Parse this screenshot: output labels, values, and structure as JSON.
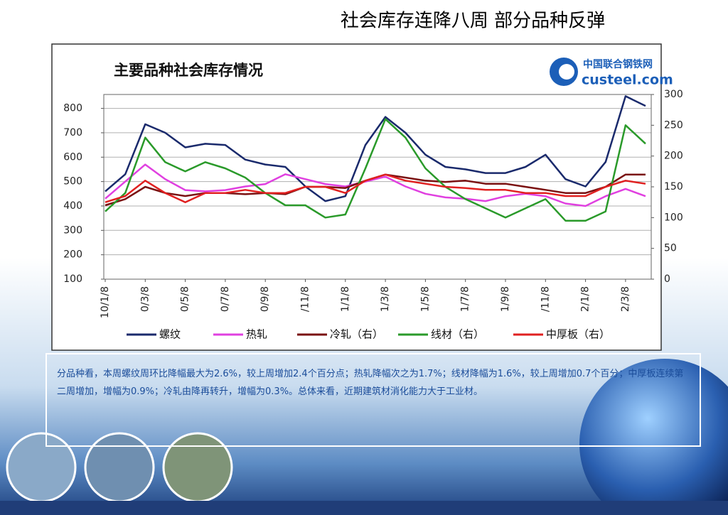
{
  "slide_title": "社会库存连降八周  部分品种反弹",
  "logo": {
    "name": "中国联合钢铁网",
    "url": "custeel.com"
  },
  "text": "分品种看，本周螺纹周环比降幅最大为2.6%，较上周增加2.4个百分点；热轧降幅次之为1.7%；线材降幅为1.6%，较上周增加0.7个百分；中厚板连续第二周增加，增幅为0.9%；冷轧由降再转升，增幅为0.3%。总体来看，近期建筑材消化能力大于工业材。",
  "chart_data": {
    "type": "line",
    "title": "主要品种社会库存情况",
    "categories": [
      "10/1/8",
      null,
      "0/3/8",
      null,
      "0/5/8",
      null,
      "0/7/8",
      null,
      "0/9/8",
      null,
      "/11/8",
      null,
      "1/1/8",
      null,
      "1/3/8",
      null,
      "1/5/8",
      null,
      "1/7/8",
      null,
      "1/9/8",
      null,
      "/11/8",
      null,
      "2/1/8",
      null,
      "2/3/8",
      null
    ],
    "series": [
      {
        "name": "螺纹",
        "color": "#1a2a6c",
        "values": [
          460,
          530,
          735,
          700,
          640,
          655,
          650,
          590,
          570,
          560,
          480,
          420,
          440,
          650,
          765,
          700,
          610,
          560,
          550,
          535,
          535,
          560,
          610,
          510,
          480,
          580,
          850,
          810
        ]
      },
      {
        "name": "热轧",
        "color": "#e040e0",
        "values": [
          430,
          500,
          570,
          510,
          465,
          460,
          465,
          480,
          490,
          530,
          510,
          490,
          480,
          500,
          520,
          480,
          450,
          435,
          430,
          420,
          440,
          450,
          440,
          410,
          400,
          440,
          470,
          440
        ]
      },
      {
        "name": "冷轧（右）",
        "color": "#7a1010",
        "axis": "y2",
        "values": [
          120,
          130,
          150,
          140,
          135,
          140,
          140,
          138,
          140,
          138,
          150,
          150,
          148,
          160,
          170,
          165,
          160,
          158,
          160,
          155,
          155,
          150,
          145,
          140,
          140,
          150,
          170,
          170
        ]
      },
      {
        "name": "线材（右）",
        "color": "#2a9a2a",
        "axis": "y2",
        "values": [
          110,
          140,
          230,
          190,
          175,
          190,
          180,
          165,
          140,
          120,
          120,
          100,
          105,
          180,
          260,
          230,
          180,
          150,
          130,
          115,
          100,
          115,
          130,
          95,
          95,
          110,
          250,
          220
        ]
      },
      {
        "name": "中厚板（右）",
        "color": "#e02020",
        "axis": "y2",
        "values": [
          125,
          135,
          160,
          140,
          125,
          140,
          140,
          145,
          140,
          140,
          150,
          150,
          140,
          160,
          170,
          160,
          155,
          150,
          148,
          145,
          145,
          140,
          140,
          135,
          135,
          150,
          160,
          155
        ]
      }
    ],
    "ylim": [
      100,
      857
    ],
    "yticks": [
      100,
      200,
      300,
      400,
      500,
      600,
      700,
      800
    ],
    "y2lim": [
      0,
      300
    ],
    "y2ticks": [
      0,
      50,
      100,
      150,
      200,
      250,
      300
    ],
    "grid": true,
    "legend": "bottom"
  }
}
